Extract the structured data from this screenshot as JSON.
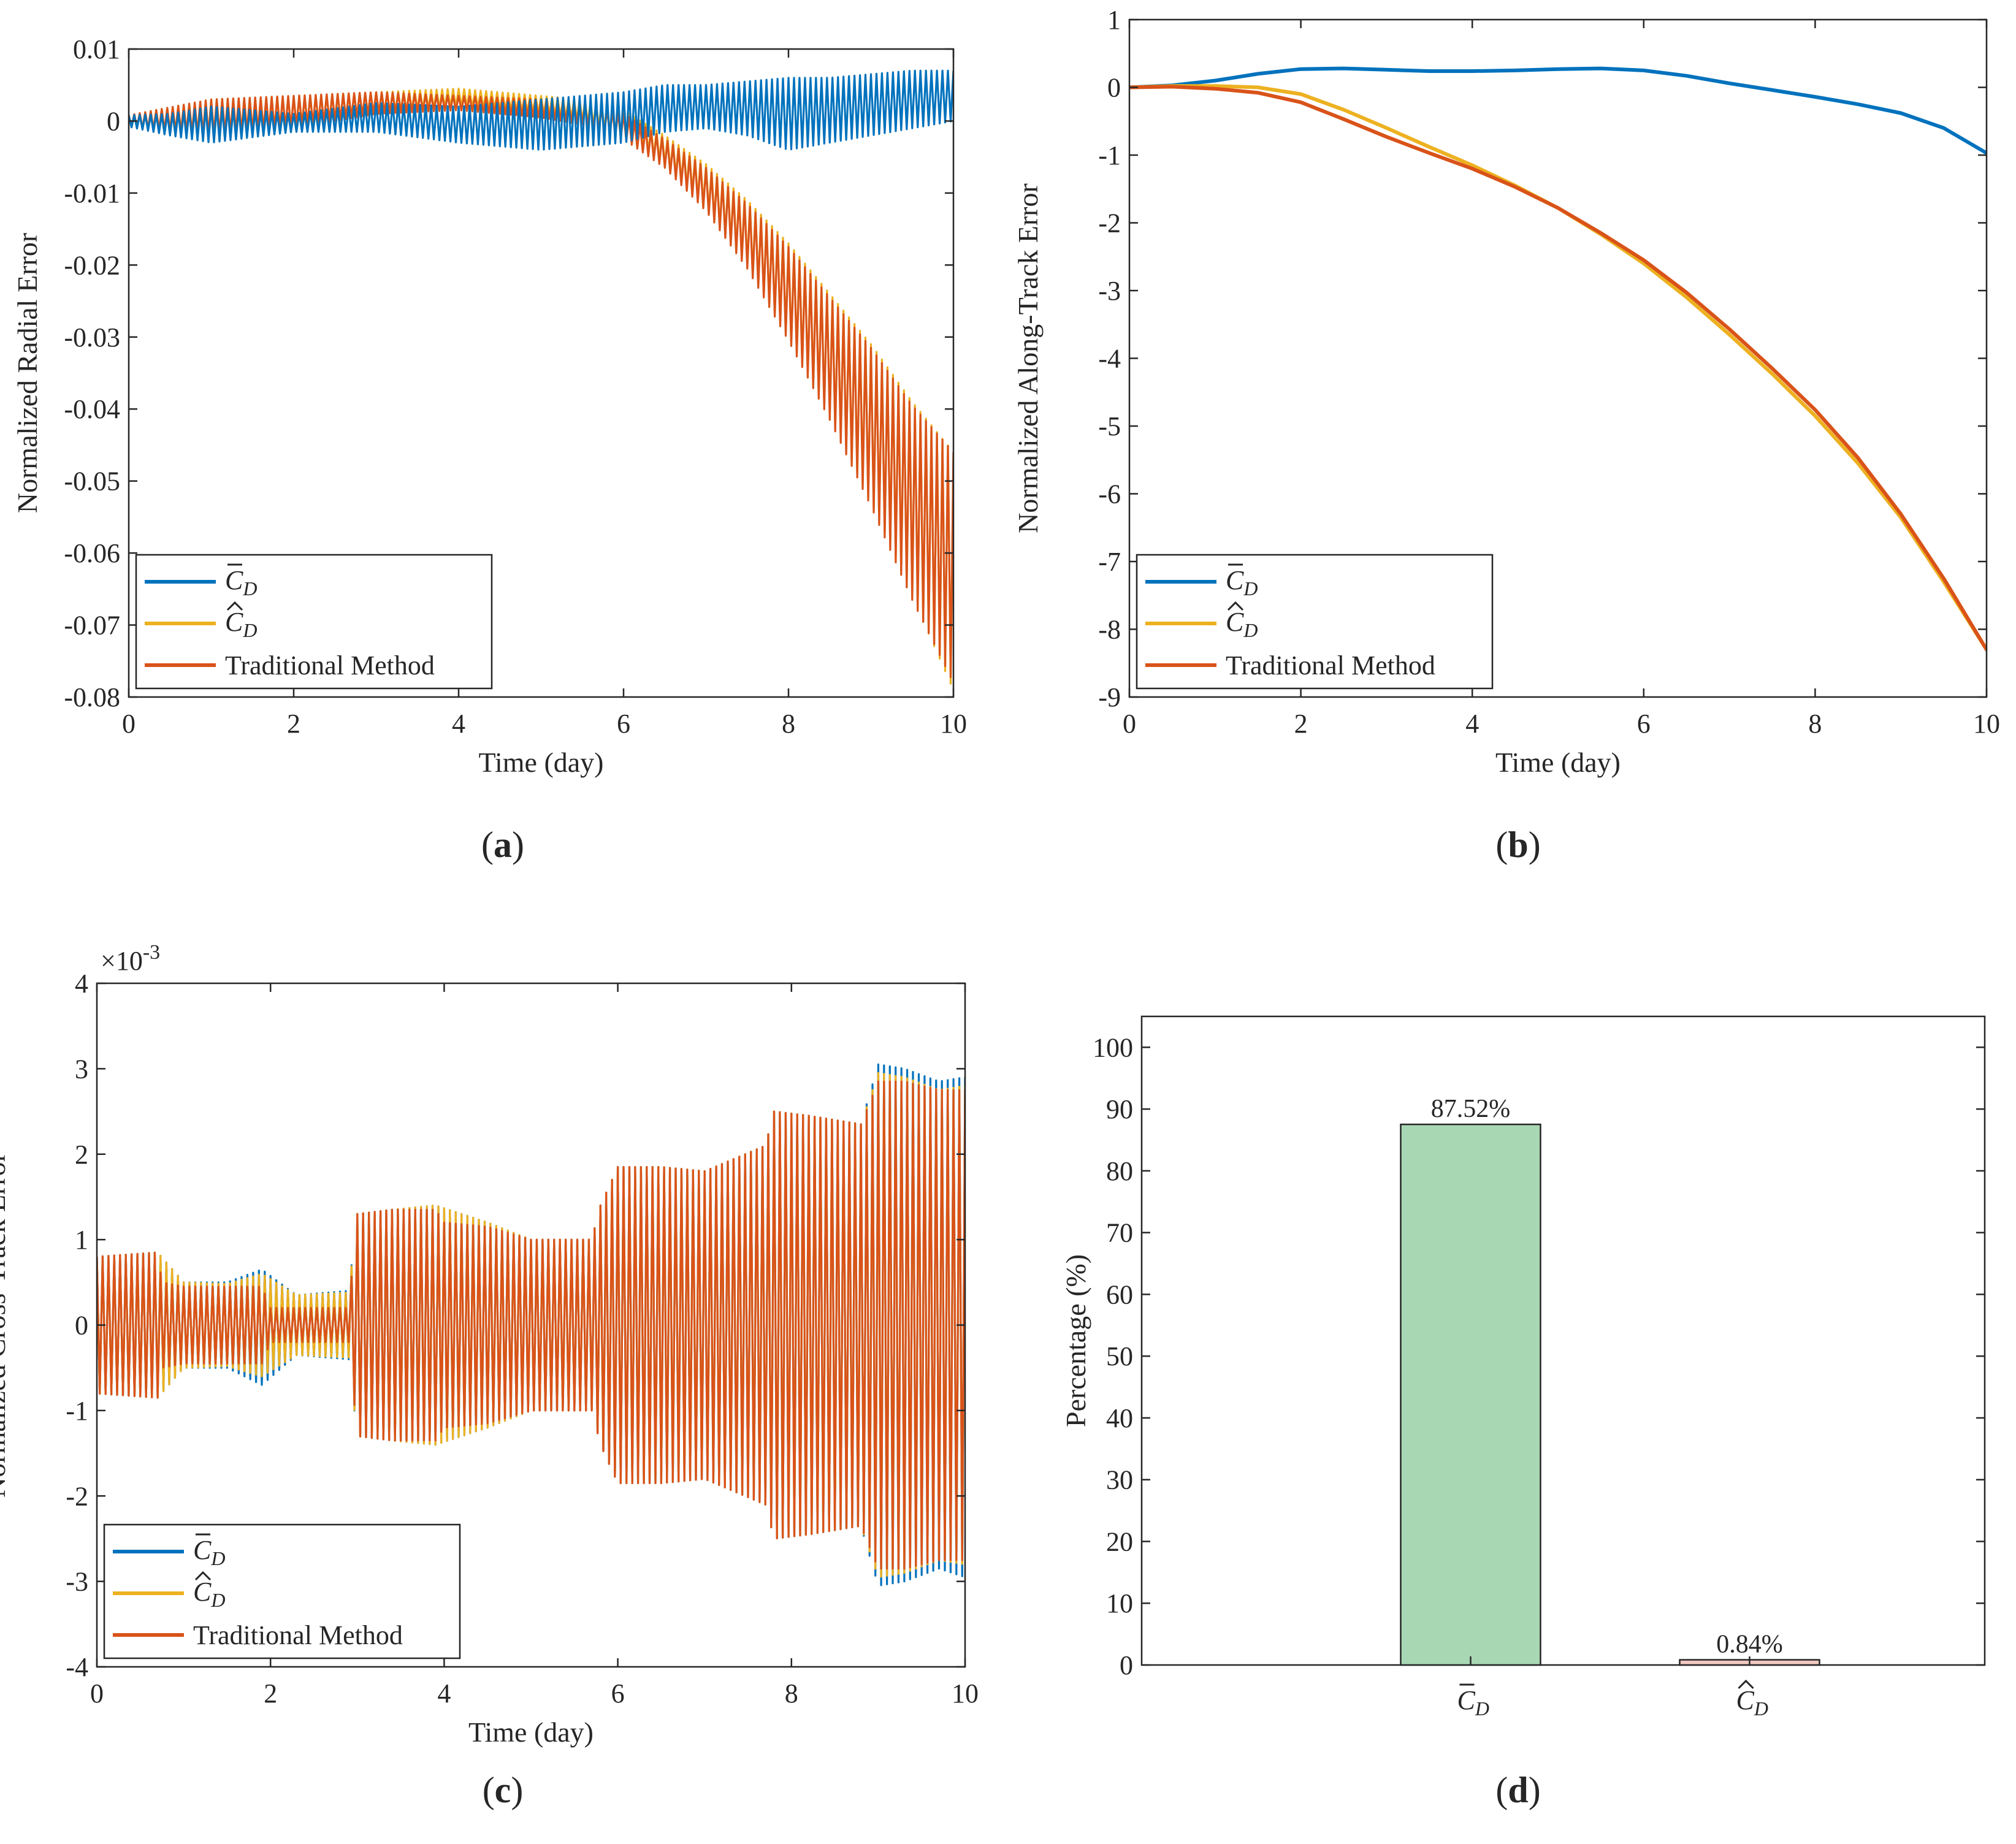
{
  "colors": {
    "c_bar": "#0072BD",
    "c_hat": "#EDB120",
    "traditional": "#D95319",
    "bar_green": "#A8D8B3",
    "bar_pink": "#F0C8C0",
    "axis": "#262626"
  },
  "legend": {
    "c_bar": {
      "base": "C",
      "sub": "D",
      "accent": "bar"
    },
    "c_hat": {
      "base": "C",
      "sub": "D",
      "accent": "hat"
    },
    "traditional": "Traditional Method"
  },
  "chart_data": [
    {
      "id": "a",
      "type": "line",
      "panel_label": "(a)",
      "xlabel": "Time (day)",
      "ylabel": "Normalized Radial Error",
      "xlim": [
        0,
        10
      ],
      "ylim": [
        -0.08,
        0.01
      ],
      "xticks": [
        0,
        2,
        4,
        6,
        8,
        10
      ],
      "xtick_labels": [
        "0",
        "2",
        "4",
        "6",
        "8",
        "10"
      ],
      "yticks": [
        0.01,
        0,
        -0.01,
        -0.02,
        -0.03,
        -0.04,
        -0.05,
        -0.06,
        -0.07,
        -0.08
      ],
      "ytick_labels": [
        "0.01",
        "0",
        "-0.01",
        "-0.02",
        "-0.03",
        "-0.04",
        "-0.05",
        "-0.06",
        "-0.07",
        "-0.08"
      ],
      "legend_position": "bottom-left",
      "series": [
        {
          "key": "c_hat",
          "upper": {
            "x": [
              0,
              1,
              2,
              3,
              4,
              5,
              5.5,
              6,
              6.5,
              7,
              7.5,
              8,
              8.5,
              9,
              9.5,
              10
            ],
            "y": [
              0.0008,
              0.003,
              0.0035,
              0.004,
              0.0045,
              0.0035,
              0.003,
              0.0015,
              -0.002,
              -0.006,
              -0.011,
              -0.017,
              -0.024,
              -0.031,
              -0.039,
              -0.046
            ]
          },
          "lower": {
            "x": [
              0,
              1,
              2,
              3,
              4,
              5,
              5.5,
              6,
              6.5,
              7,
              7.5,
              8,
              8.5,
              9,
              9.5,
              10
            ],
            "y": [
              -0.0008,
              -0.002,
              -0.001,
              0.001,
              0.002,
              0.001,
              0,
              -0.002,
              -0.006,
              -0.012,
              -0.02,
              -0.03,
              -0.041,
              -0.053,
              -0.066,
              -0.079
            ]
          }
        },
        {
          "key": "traditional",
          "upper": {
            "x": [
              0,
              1,
              2,
              3,
              4,
              5,
              5.5,
              6,
              6.5,
              7,
              7.5,
              8,
              8.5,
              9,
              9.5,
              10
            ],
            "y": [
              0.0008,
              0.003,
              0.0035,
              0.004,
              0.0035,
              0.003,
              0.0025,
              0.001,
              -0.0025,
              -0.0065,
              -0.0115,
              -0.0175,
              -0.0245,
              -0.0315,
              -0.0395,
              -0.046
            ]
          },
          "lower": {
            "x": [
              0,
              1,
              2,
              3,
              4,
              5,
              5.5,
              6,
              6.5,
              7,
              7.5,
              8,
              8.5,
              9,
              9.5,
              10
            ],
            "y": [
              -0.0008,
              -0.002,
              -0.001,
              0.001,
              0.0015,
              0.0005,
              -0.0005,
              -0.0025,
              -0.0065,
              -0.0125,
              -0.0205,
              -0.0305,
              -0.0415,
              -0.0535,
              -0.0665,
              -0.078
            ]
          }
        },
        {
          "key": "c_bar",
          "upper": {
            "x": [
              0,
              0.5,
              1,
              2,
              3,
              4,
              5,
              6,
              6.5,
              7,
              7.5,
              8,
              8.5,
              9,
              9.5,
              10
            ],
            "y": [
              0.0008,
              0.001,
              0.002,
              0.001,
              0.0025,
              0.002,
              0.003,
              0.004,
              0.005,
              0.005,
              0.0055,
              0.006,
              0.006,
              0.0065,
              0.007,
              0.007
            ]
          },
          "lower": {
            "x": [
              0,
              0.5,
              1,
              2,
              3,
              4,
              5,
              6,
              6.5,
              7,
              7.5,
              8,
              8.5,
              9,
              9.5,
              10
            ],
            "y": [
              -0.0008,
              -0.002,
              -0.003,
              -0.0015,
              -0.0015,
              -0.003,
              -0.004,
              -0.003,
              -0.0015,
              -0.001,
              -0.002,
              -0.004,
              -0.003,
              -0.002,
              -0.001,
              0
            ]
          }
        }
      ]
    },
    {
      "id": "b",
      "type": "line",
      "panel_label": "(b)",
      "xlabel": "Time (day)",
      "ylabel": "Normalized Along-Track Error",
      "xlim": [
        0,
        10
      ],
      "ylim": [
        -9,
        1
      ],
      "xticks": [
        0,
        2,
        4,
        6,
        8,
        10
      ],
      "xtick_labels": [
        "0",
        "2",
        "4",
        "6",
        "8",
        "10"
      ],
      "yticks": [
        1,
        0,
        -1,
        -2,
        -3,
        -4,
        -5,
        -6,
        -7,
        -8,
        -9
      ],
      "ytick_labels": [
        "1",
        "0",
        "-1",
        "-2",
        "-3",
        "-4",
        "-5",
        "-6",
        "-7",
        "-8",
        "-9"
      ],
      "legend_position": "bottom-left",
      "series": [
        {
          "key": "c_bar",
          "x": [
            0,
            0.5,
            1,
            1.5,
            2,
            2.5,
            3,
            3.5,
            4,
            4.5,
            5,
            5.5,
            6,
            6.5,
            7,
            7.5,
            8,
            8.5,
            9,
            9.5,
            10
          ],
          "y": [
            0,
            0.03,
            0.1,
            0.2,
            0.27,
            0.28,
            0.26,
            0.24,
            0.24,
            0.25,
            0.27,
            0.28,
            0.25,
            0.17,
            0.06,
            -0.04,
            -0.14,
            -0.25,
            -0.38,
            -0.6,
            -0.97
          ]
        },
        {
          "key": "c_hat",
          "x": [
            0,
            0.5,
            1,
            1.5,
            2,
            2.5,
            3,
            3.5,
            4,
            4.5,
            5,
            5.5,
            6,
            6.5,
            7,
            7.5,
            8,
            8.5,
            9,
            9.5,
            10
          ],
          "y": [
            0,
            0.02,
            0.02,
            0,
            -0.1,
            -0.33,
            -0.6,
            -0.88,
            -1.15,
            -1.45,
            -1.78,
            -2.17,
            -2.6,
            -3.1,
            -3.65,
            -4.23,
            -4.85,
            -5.55,
            -6.35,
            -7.3,
            -8.3
          ]
        },
        {
          "key": "traditional",
          "x": [
            0,
            0.5,
            1,
            1.5,
            2,
            2.5,
            3,
            3.5,
            4,
            4.5,
            5,
            5.5,
            6,
            6.5,
            7,
            7.5,
            8,
            8.5,
            9,
            9.5,
            10
          ],
          "y": [
            0,
            0.01,
            -0.02,
            -0.08,
            -0.22,
            -0.47,
            -0.73,
            -0.97,
            -1.2,
            -1.47,
            -1.78,
            -2.15,
            -2.55,
            -3.03,
            -3.57,
            -4.15,
            -4.76,
            -5.47,
            -6.3,
            -7.25,
            -8.3
          ]
        }
      ]
    },
    {
      "id": "c",
      "type": "line",
      "panel_label": "(c)",
      "xlabel": "Time (day)",
      "ylabel": "Normalized Cross-Track Error",
      "exponent": {
        "base": "×10",
        "power": "-3"
      },
      "xlim": [
        0,
        10
      ],
      "ylim": [
        -4,
        4
      ],
      "xticks": [
        0,
        2,
        4,
        6,
        8,
        10
      ],
      "xtick_labels": [
        "0",
        "2",
        "4",
        "6",
        "8",
        "10"
      ],
      "yticks": [
        4,
        3,
        2,
        1,
        0,
        -1,
        -2,
        -3,
        -4
      ],
      "ytick_labels": [
        "4",
        "3",
        "2",
        "1",
        "0",
        "-1",
        "-2",
        "-3",
        "-4"
      ],
      "legend_position": "bottom-left",
      "series": [
        {
          "key": "c_bar",
          "upper": {
            "x": [
              0,
              0.7,
              1,
              1.5,
              1.9,
              2.3,
              2.9,
              3.0,
              3.4,
              3.9,
              4.5,
              5.0,
              5.7,
              5.8,
              6.0,
              6.5,
              7.0,
              7.7,
              7.8,
              8.2,
              8.8,
              9.0,
              9.3,
              9.7,
              10
            ],
            "y": [
              0.8,
              0.85,
              0.5,
              0.5,
              0.65,
              0.35,
              0.4,
              1.3,
              1.35,
              1.4,
              1.2,
              1.0,
              1.0,
              1.4,
              1.85,
              1.85,
              1.8,
              2.1,
              2.5,
              2.45,
              2.35,
              3.05,
              3.0,
              2.85,
              2.9
            ]
          },
          "lower": {
            "x": [
              0,
              0.7,
              1,
              1.5,
              1.9,
              2.3,
              2.9,
              3.0,
              3.4,
              3.9,
              4.5,
              5.0,
              5.7,
              5.8,
              6.0,
              6.5,
              7.0,
              7.7,
              7.8,
              8.2,
              8.8,
              9.0,
              9.3,
              9.7,
              10
            ],
            "y": [
              -0.8,
              -0.85,
              -0.5,
              -0.5,
              -0.7,
              -0.35,
              -0.4,
              -1.3,
              -1.35,
              -1.4,
              -1.2,
              -1.0,
              -1.0,
              -1.4,
              -1.85,
              -1.85,
              -1.8,
              -2.1,
              -2.5,
              -2.45,
              -2.35,
              -3.05,
              -3.0,
              -2.85,
              -2.95
            ]
          }
        },
        {
          "key": "c_hat",
          "upper": {
            "x": [
              0,
              0.7,
              1,
              1.5,
              1.9,
              2.3,
              2.9,
              3.0,
              3.4,
              3.9,
              4.5,
              5.0,
              5.7,
              5.8,
              6.0,
              6.5,
              7.0,
              7.7,
              7.8,
              8.2,
              8.8,
              9.0,
              9.3,
              9.7,
              10
            ],
            "y": [
              0.8,
              0.85,
              0.5,
              0.48,
              0.6,
              0.35,
              0.38,
              1.3,
              1.35,
              1.4,
              1.2,
              1.0,
              1.0,
              1.4,
              1.85,
              1.85,
              1.8,
              2.1,
              2.5,
              2.45,
              2.35,
              2.95,
              2.9,
              2.75,
              2.8
            ]
          },
          "lower": {
            "x": [
              0,
              0.7,
              1,
              1.5,
              1.9,
              2.3,
              2.9,
              3.0,
              3.4,
              3.9,
              4.5,
              5.0,
              5.7,
              5.8,
              6.0,
              6.5,
              7.0,
              7.7,
              7.8,
              8.2,
              8.8,
              9.0,
              9.3,
              9.7,
              10
            ],
            "y": [
              -0.8,
              -0.85,
              -0.5,
              -0.48,
              -0.6,
              -0.35,
              -0.38,
              -1.3,
              -1.35,
              -1.4,
              -1.2,
              -1.0,
              -1.0,
              -1.4,
              -1.85,
              -1.85,
              -1.8,
              -2.1,
              -2.5,
              -2.45,
              -2.35,
              -2.95,
              -2.9,
              -2.75,
              -2.8
            ]
          }
        },
        {
          "key": "traditional",
          "upper": {
            "x": [
              0,
              0.7,
              0.75,
              1.0,
              1.9,
              2.0,
              2.9,
              3.0,
              3.4,
              3.9,
              4.0,
              4.5,
              5.0,
              5.7,
              5.8,
              6.0,
              6.5,
              7.0,
              7.7,
              7.8,
              8.2,
              8.8,
              9.0,
              9.3,
              9.7,
              10
            ],
            "y": [
              0.8,
              0.85,
              0.5,
              0.45,
              0.45,
              0.2,
              0.2,
              1.3,
              1.35,
              1.35,
              1.2,
              1.15,
              1.0,
              1.0,
              1.4,
              1.85,
              1.85,
              1.8,
              2.1,
              2.5,
              2.45,
              2.35,
              2.85,
              2.85,
              2.75,
              2.75
            ]
          },
          "lower": {
            "x": [
              0,
              0.7,
              0.75,
              1.0,
              1.9,
              2.0,
              2.9,
              3.0,
              3.4,
              3.9,
              4.0,
              4.5,
              5.0,
              5.7,
              5.8,
              6.0,
              6.5,
              7.0,
              7.7,
              7.8,
              8.2,
              8.8,
              9.0,
              9.3,
              9.7,
              10
            ],
            "y": [
              -0.8,
              -0.85,
              -0.5,
              -0.45,
              -0.45,
              -0.2,
              -0.2,
              -1.3,
              -1.35,
              -1.35,
              -1.2,
              -1.15,
              -1.0,
              -1.0,
              -1.4,
              -1.85,
              -1.85,
              -1.8,
              -2.1,
              -2.5,
              -2.45,
              -2.35,
              -2.85,
              -2.85,
              -2.75,
              -2.75
            ]
          }
        }
      ]
    },
    {
      "id": "d",
      "type": "bar",
      "panel_label": "(d)",
      "xlabel": "",
      "ylabel": "Percentage (%)",
      "ylim": [
        0,
        105
      ],
      "yticks": [
        0,
        10,
        20,
        30,
        40,
        50,
        60,
        70,
        80,
        90,
        100
      ],
      "ytick_labels": [
        "0",
        "10",
        "20",
        "30",
        "40",
        "50",
        "60",
        "70",
        "80",
        "90",
        "100"
      ],
      "categories": [
        "c_bar",
        "c_hat"
      ],
      "values": [
        87.52,
        0.84
      ],
      "value_labels": [
        "87.52%",
        "0.84%"
      ],
      "bar_colors": [
        "bar_green",
        "bar_pink"
      ]
    }
  ]
}
